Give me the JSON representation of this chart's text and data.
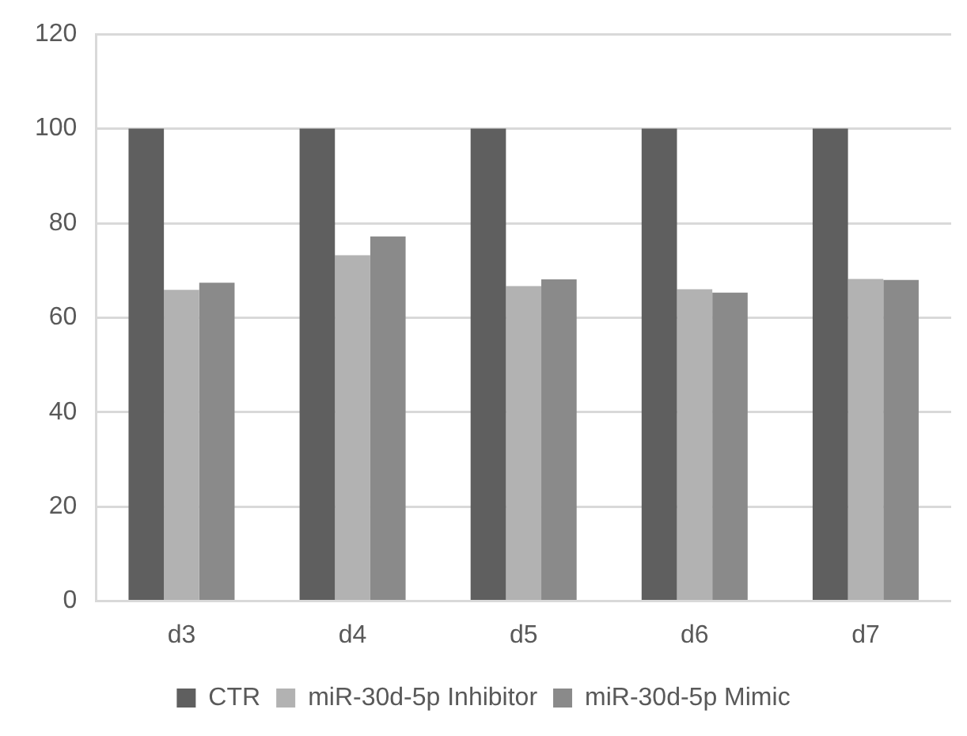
{
  "chart_data": {
    "type": "bar",
    "categories": [
      "d3",
      "d4",
      "d5",
      "d6",
      "d7"
    ],
    "series": [
      {
        "name": "CTR",
        "color": "#5f5f5f",
        "values": [
          100,
          100,
          100,
          100,
          100
        ]
      },
      {
        "name": "miR-30d-5p Inhibitor",
        "color": "#b2b2b2",
        "values": [
          65.9,
          73.2,
          66.7,
          66.0,
          68.2
        ]
      },
      {
        "name": "miR-30d-5p Mimic",
        "color": "#8a8a8a",
        "values": [
          67.4,
          77.2,
          68.1,
          65.3,
          68.0
        ]
      }
    ],
    "ylim": [
      0,
      120
    ],
    "yticks": [
      0,
      20,
      40,
      60,
      80,
      100,
      120
    ],
    "grid": "y",
    "legend": "bottom"
  }
}
